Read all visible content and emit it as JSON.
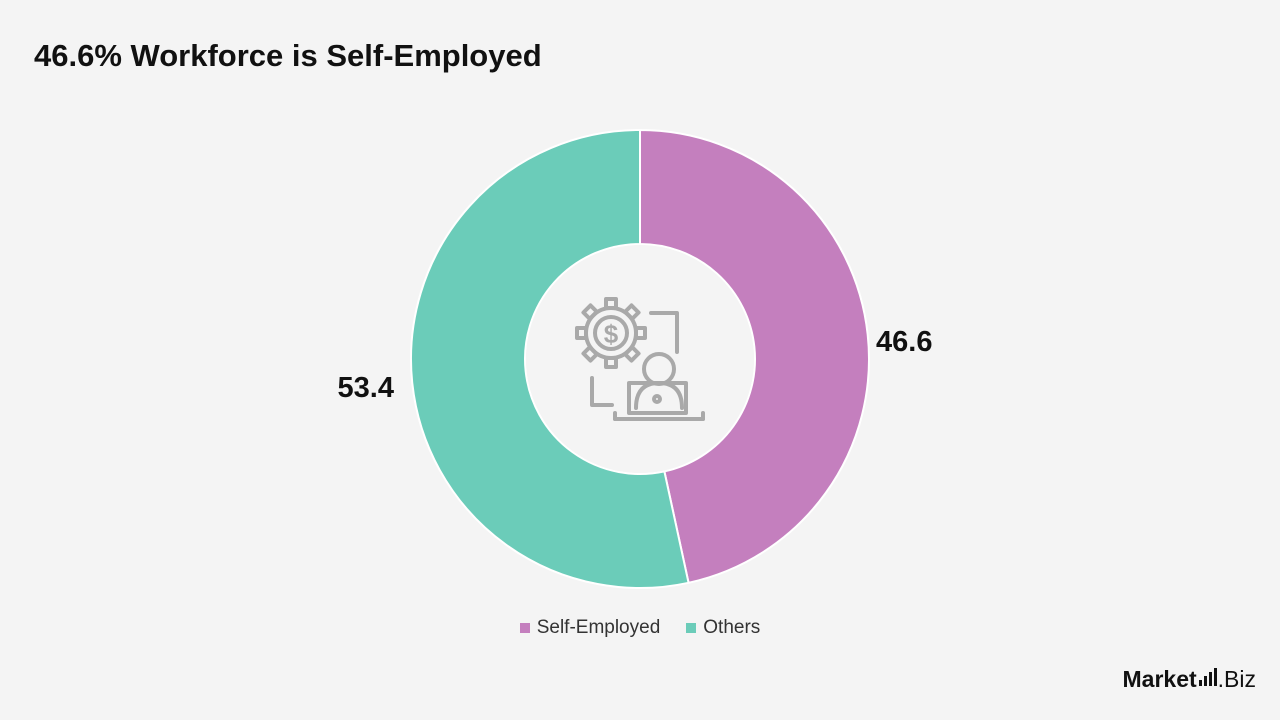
{
  "chart_data": {
    "type": "pie",
    "title": "46.6% Workforce is Self-Employed",
    "categories": [
      "Self-Employed",
      "Others"
    ],
    "values": [
      46.6,
      53.4
    ],
    "data_labels": [
      "46.6",
      "53.4"
    ],
    "colors": [
      "#c47fbe",
      "#6bccb9"
    ],
    "donut": true,
    "legend_position": "bottom-center",
    "center_icon": "self-employed-laptop-gear-icon"
  },
  "legend": [
    {
      "label": "Self-Employed",
      "color": "#c47fbe"
    },
    {
      "label": "Others",
      "color": "#6bccb9"
    }
  ],
  "brand": {
    "name_main": "Market",
    "name_suffix": ".Biz"
  }
}
